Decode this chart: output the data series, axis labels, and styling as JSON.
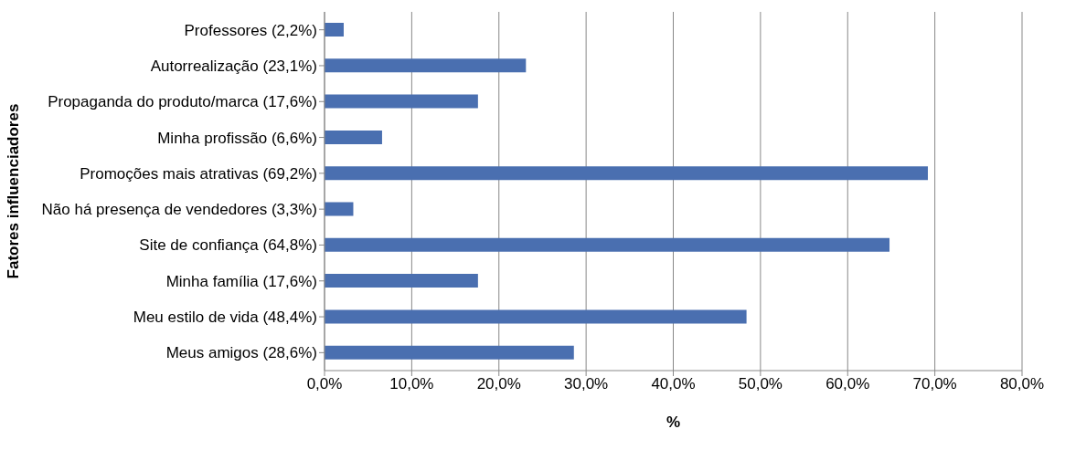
{
  "chart_data": {
    "type": "bar",
    "orientation": "horizontal",
    "xlabel": "%",
    "ylabel": "Fatores influenciadores",
    "categories": [
      "Professores (2,2%)",
      "Autorrealização (23,1%)",
      "Propaganda do produto/marca (17,6%)",
      "Minha profissão (6,6%)",
      "Promoções mais atrativas (69,2%)",
      "Não há presença de vendedores (3,3%)",
      "Site de confiança (64,8%)",
      "Minha família (17,6%)",
      "Meu estilo de vida (48,4%)",
      "Meus amigos (28,6%)"
    ],
    "values": [
      2.2,
      23.1,
      17.6,
      6.6,
      69.2,
      3.3,
      64.8,
      17.6,
      48.4,
      28.6
    ],
    "color": "#4a6fb0",
    "xlim": [
      0,
      80
    ],
    "xticks": [
      {
        "value": 0,
        "label": "0,0%"
      },
      {
        "value": 10,
        "label": "10,0%"
      },
      {
        "value": 20,
        "label": "20,0%"
      },
      {
        "value": 30,
        "label": "30,0%"
      },
      {
        "value": 40,
        "label": "40,0%"
      },
      {
        "value": 50,
        "label": "50,0%"
      },
      {
        "value": 60,
        "label": "60,0%"
      },
      {
        "value": 70,
        "label": "70,0%"
      },
      {
        "value": 80,
        "label": "80,0%"
      }
    ],
    "grid": "x",
    "legend": false
  }
}
